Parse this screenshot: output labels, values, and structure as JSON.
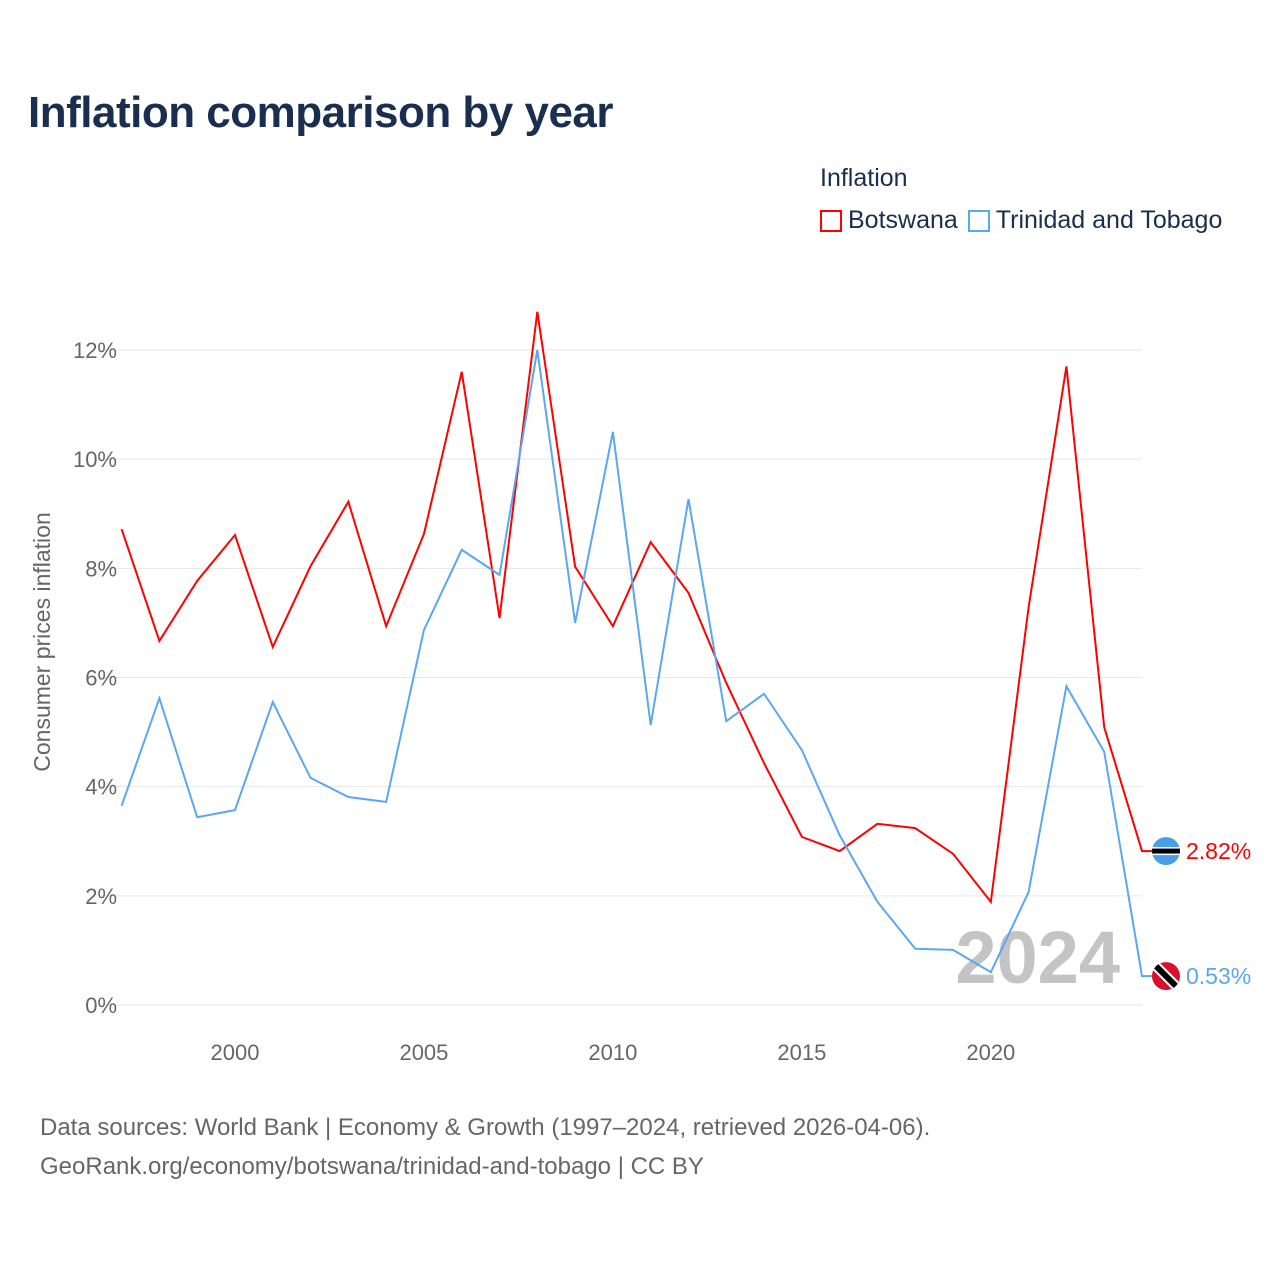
{
  "chart_data": {
    "type": "line",
    "title": "Inflation comparison by year",
    "legend_title": "Inflation",
    "legend_placement": "top-right",
    "ylabel": "Consumer prices inflation",
    "xlabel": "",
    "xlim": [
      1997,
      2024
    ],
    "ylim": [
      0,
      12
    ],
    "x_ticks": [
      2000,
      2005,
      2010,
      2015,
      2020
    ],
    "y_ticks": [
      0,
      2,
      4,
      6,
      8,
      10,
      12
    ],
    "y_tick_labels": [
      "0%",
      "2%",
      "4%",
      "6%",
      "8%",
      "10%",
      "12%"
    ],
    "grid": true,
    "year_watermark": "2024",
    "x": [
      1997,
      1998,
      1999,
      2000,
      2001,
      2002,
      2003,
      2004,
      2005,
      2006,
      2007,
      2008,
      2009,
      2010,
      2011,
      2012,
      2013,
      2014,
      2015,
      2016,
      2017,
      2018,
      2019,
      2020,
      2021,
      2022,
      2023,
      2024
    ],
    "series": [
      {
        "name": "Botswana",
        "color": "#ff0000",
        "end_label": "2.82%",
        "values": [
          8.72,
          6.67,
          7.77,
          8.61,
          6.56,
          8.04,
          9.22,
          6.94,
          8.63,
          11.6,
          7.09,
          12.7,
          8.03,
          6.94,
          8.48,
          7.55,
          5.9,
          4.43,
          3.08,
          2.82,
          3.32,
          3.24,
          2.77,
          1.89,
          7.29,
          11.7,
          5.09,
          2.82
        ]
      },
      {
        "name": "Trinidad and Tobago",
        "color": "#5ba7f0",
        "end_label": "0.53%",
        "values": [
          3.65,
          5.62,
          3.44,
          3.57,
          5.55,
          4.16,
          3.81,
          3.72,
          6.87,
          8.34,
          7.88,
          12.0,
          7.0,
          10.5,
          5.13,
          9.27,
          5.2,
          5.7,
          4.67,
          3.11,
          1.89,
          1.03,
          1.01,
          0.6,
          2.07,
          5.84,
          4.64,
          0.53
        ]
      }
    ]
  },
  "footer": {
    "line1": "Data sources: World Bank | Economy & Growth (1997–2024, retrieved 2026-04-06).",
    "line2": "GeoRank.org/economy/botswana/trinidad-and-tobago | CC BY"
  }
}
